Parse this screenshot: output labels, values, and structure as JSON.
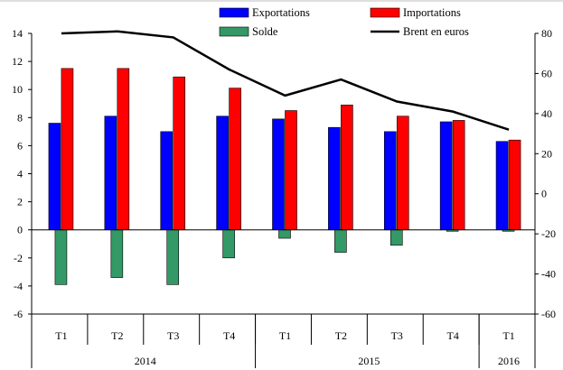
{
  "chart_data": {
    "type": "bar",
    "categories": [
      "T1",
      "T2",
      "T3",
      "T4",
      "T1",
      "T2",
      "T3",
      "T4",
      "T1"
    ],
    "groups": [
      {
        "label": "2014",
        "count": 4
      },
      {
        "label": "2015",
        "count": 4
      },
      {
        "label": "2016",
        "count": 1
      }
    ],
    "series": [
      {
        "name": "Exportations",
        "axis": "left",
        "kind": "bar",
        "color": "#0000ff",
        "values": [
          7.6,
          8.1,
          7.0,
          8.1,
          7.9,
          7.3,
          7.0,
          7.7,
          6.3
        ]
      },
      {
        "name": "Importations",
        "axis": "left",
        "kind": "bar",
        "color": "#ff0000",
        "values": [
          11.5,
          11.5,
          10.9,
          10.1,
          8.5,
          8.9,
          8.1,
          7.8,
          6.4
        ]
      },
      {
        "name": "Solde",
        "axis": "left",
        "kind": "bar",
        "color": "#339966",
        "values": [
          -3.9,
          -3.4,
          -3.9,
          -2.0,
          -0.6,
          -1.6,
          -1.1,
          -0.1,
          -0.1
        ]
      },
      {
        "name": "Brent en euros",
        "axis": "right",
        "kind": "line",
        "color": "#000000",
        "values": [
          80,
          81,
          78,
          62,
          49,
          57,
          46,
          41,
          32
        ]
      }
    ],
    "left_axis": {
      "min": -6,
      "max": 14,
      "ticks": [
        14,
        12,
        10,
        8,
        6,
        4,
        2,
        0,
        -2,
        -4,
        -6
      ]
    },
    "right_axis": {
      "min": -60,
      "max": 80,
      "ticks": [
        80,
        60,
        40,
        20,
        0,
        -20,
        -40,
        -60
      ]
    },
    "legend": {
      "position": "top"
    },
    "grid": false
  }
}
